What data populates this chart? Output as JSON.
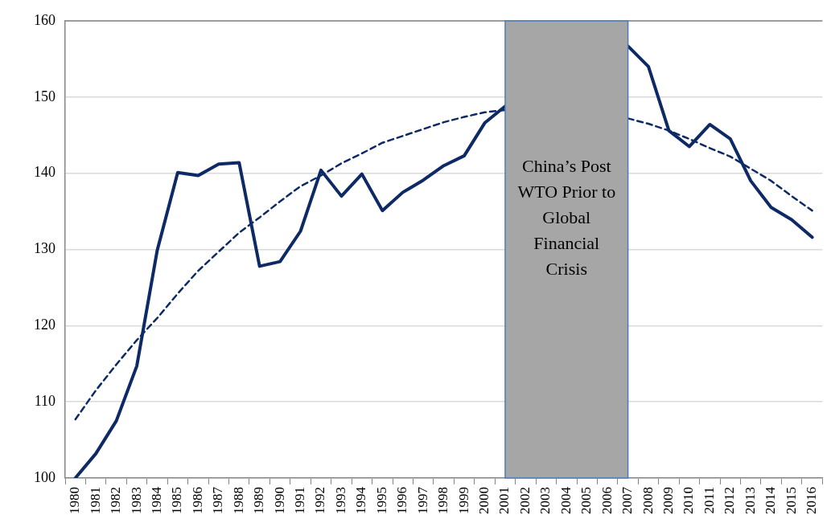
{
  "chart_data": {
    "type": "line",
    "categories": [
      "1980",
      "1981",
      "1982",
      "1983",
      "1984",
      "1985",
      "1986",
      "1987",
      "1988",
      "1989",
      "1990",
      "1991",
      "1992",
      "1993",
      "1994",
      "1995",
      "1996",
      "1997",
      "1998",
      "1999",
      "2000",
      "2001",
      "2002",
      "2003",
      "2004",
      "2005",
      "2006",
      "2007",
      "2008",
      "2009",
      "2010",
      "2011",
      "2012",
      "2013",
      "2014",
      "2015",
      "2016"
    ],
    "series": [
      {
        "color": "#0d2a66",
        "values": [
          100,
          103.2,
          107.5,
          114.7,
          129.9,
          140.1,
          139.7,
          141.2,
          141.4,
          127.8,
          128.4,
          132.4,
          140.4,
          137.0,
          139.9,
          135.1,
          137.5,
          139.1,
          141.0,
          142.3,
          146.6,
          148.8,
          null,
          null,
          null,
          null,
          null,
          156.7,
          154.0,
          145.6,
          143.5,
          146.4,
          144.5,
          139.0,
          135.5,
          133.9,
          131.6
        ]
      },
      {
        "type": "line",
        "color": "#0d2a66",
        "line_style": "dashed",
        "values": [
          107.7,
          111.5,
          114.9,
          118.1,
          121.0,
          124.2,
          127.2,
          129.7,
          132.2,
          134.2,
          136.3,
          138.3,
          139.7,
          141.3,
          142.6,
          144.0,
          144.9,
          145.8,
          146.7,
          147.4,
          148.0,
          148.3,
          null,
          null,
          null,
          null,
          null,
          147.2,
          146.5,
          145.6,
          144.5,
          143.3,
          142.2,
          140.6,
          139.0,
          137.0,
          135.1
        ]
      }
    ],
    "ylim": [
      100,
      160
    ],
    "yticks": [
      100,
      110,
      120,
      130,
      140,
      150,
      160
    ],
    "grid": "y",
    "marker": "none",
    "line_style": "solid",
    "bands": [
      {
        "axis": "x",
        "from": "2001",
        "to": "2007",
        "label": "China’s Post WTO Prior to Global Financial Crisis",
        "color": "#a6a6a6"
      }
    ]
  }
}
